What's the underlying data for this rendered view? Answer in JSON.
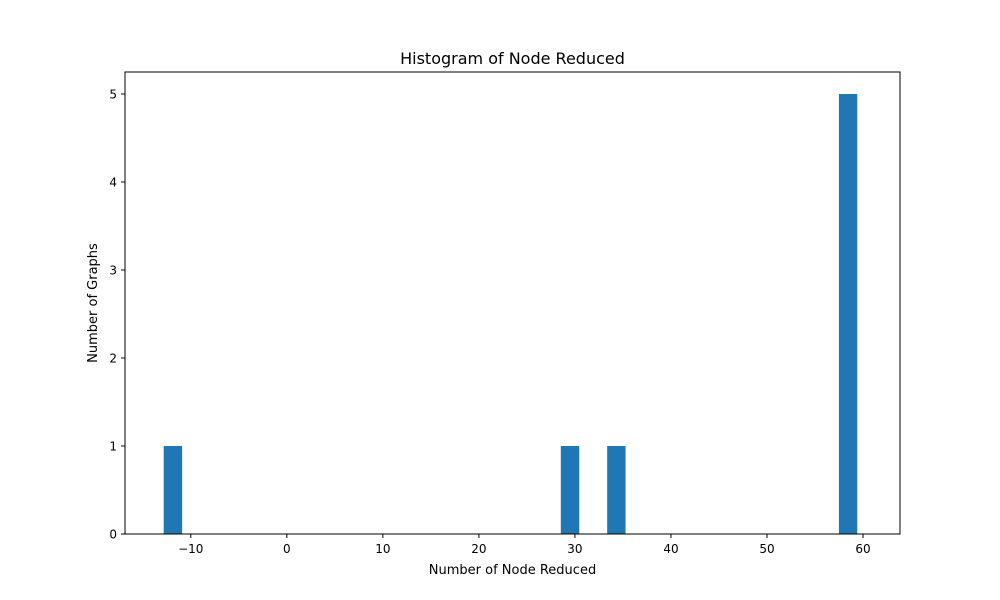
{
  "chart_data": {
    "type": "bar",
    "title": "Histogram of Node Reduced",
    "xlabel": "Number of Node Reduced",
    "ylabel": "Number of Graphs",
    "xlim": [
      -16.85,
      63.85
    ],
    "ylim": [
      0,
      5.25
    ],
    "x_ticks": [
      -10,
      0,
      10,
      20,
      30,
      40,
      50,
      60
    ],
    "y_ticks": [
      0,
      1,
      2,
      3,
      4,
      5
    ],
    "grid": false,
    "bar_color": "#1f77b4",
    "bars": [
      {
        "x_start": -12.82,
        "x_end": -10.9,
        "value": 1
      },
      {
        "x_start": 28.53,
        "x_end": 30.45,
        "value": 1
      },
      {
        "x_start": 33.36,
        "x_end": 35.27,
        "value": 1
      },
      {
        "x_start": 57.49,
        "x_end": 59.4,
        "value": 5
      }
    ]
  }
}
